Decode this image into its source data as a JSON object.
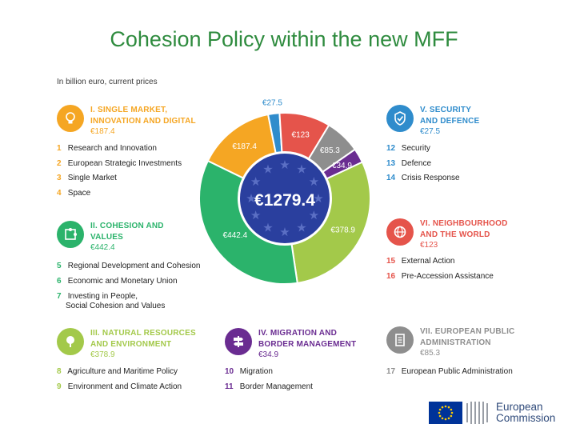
{
  "title": "Cohesion Policy within the new MFF",
  "units_note": "In billion euro, current prices",
  "center_total": "€1279.4",
  "headings": [
    {
      "roman": "I.",
      "line1": "SINGLE MARKET,",
      "line2": "INNOVATION AND DIGITAL",
      "value": "€187.4",
      "color": "#f5a623",
      "icon": "lightbulb-icon"
    },
    {
      "roman": "II.",
      "line1": "COHESION AND",
      "line2": "VALUES",
      "value": "€442.4",
      "color": "#2bb36b",
      "icon": "puzzle-icon"
    },
    {
      "roman": "III.",
      "line1": "NATURAL RESOURCES",
      "line2": "AND ENVIRONMENT",
      "value": "€378.9",
      "color": "#a3c94a",
      "icon": "tree-icon"
    },
    {
      "roman": "IV.",
      "line1": "MIGRATION AND",
      "line2": "BORDER MANAGEMENT",
      "value": "€34.9",
      "color": "#6a2c91",
      "icon": "signpost-icon"
    },
    {
      "roman": "V.",
      "line1": "SECURITY",
      "line2": "AND DEFENCE",
      "value": "€27.5",
      "color": "#2f8ccc",
      "icon": "shield-icon"
    },
    {
      "roman": "VI.",
      "line1": "NEIGHBOURHOOD",
      "line2": "AND THE WORLD",
      "value": "€123",
      "color": "#e5544b",
      "icon": "globe-icon"
    },
    {
      "roman": "VII.",
      "line1": "EUROPEAN PUBLIC",
      "line2": "ADMINISTRATION",
      "value": "€85.3",
      "color": "#8e8e8e",
      "icon": "document-icon"
    }
  ],
  "programmes": {
    "h1": [
      {
        "num": "1",
        "label": "Research and Innovation"
      },
      {
        "num": "2",
        "label": "European Strategic Investments"
      },
      {
        "num": "3",
        "label": "Single Market"
      },
      {
        "num": "4",
        "label": "Space"
      }
    ],
    "h2": [
      {
        "num": "5",
        "label": "Regional Development and Cohesion"
      },
      {
        "num": "6",
        "label": "Economic and Monetary Union"
      },
      {
        "num": "7",
        "label": "Investing in People,",
        "label2": "Social Cohesion and Values"
      }
    ],
    "h3": [
      {
        "num": "8",
        "label": "Agriculture and Maritime Policy"
      },
      {
        "num": "9",
        "label": "Environment and Climate Action"
      }
    ],
    "h4": [
      {
        "num": "10",
        "label": "Migration"
      },
      {
        "num": "11",
        "label": "Border Management"
      }
    ],
    "h5": [
      {
        "num": "12",
        "label": "Security"
      },
      {
        "num": "13",
        "label": "Defence"
      },
      {
        "num": "14",
        "label": "Crisis Response"
      }
    ],
    "h6": [
      {
        "num": "15",
        "label": "External Action"
      },
      {
        "num": "16",
        "label": "Pre-Accession Assistance"
      }
    ],
    "h7": [
      {
        "num": "17",
        "label": "European Public Administration"
      }
    ]
  },
  "logo": {
    "line1": "European",
    "line2": "Commission"
  },
  "chart_data": {
    "type": "pie",
    "title": "Cohesion Policy within the new MFF",
    "total": 1279.4,
    "total_label": "€1279.4",
    "categories": [
      "Single Market, Innovation and Digital",
      "Security and Defence",
      "Neighbourhood and the World",
      "European Public Administration",
      "Migration and Border Management",
      "Natural Resources and Environment",
      "Cohesion and Values"
    ],
    "values": [
      187.4,
      27.5,
      123,
      85.3,
      34.9,
      378.9,
      442.4
    ],
    "labels": [
      "€187.4",
      "€27.5",
      "€123",
      "€85.3",
      "€34.9",
      "€378.9",
      "€442.4"
    ],
    "colors": [
      "#f5a623",
      "#2f8ccc",
      "#e5544b",
      "#8e8e8e",
      "#6a2c91",
      "#a3c94a",
      "#2bb36b"
    ]
  }
}
